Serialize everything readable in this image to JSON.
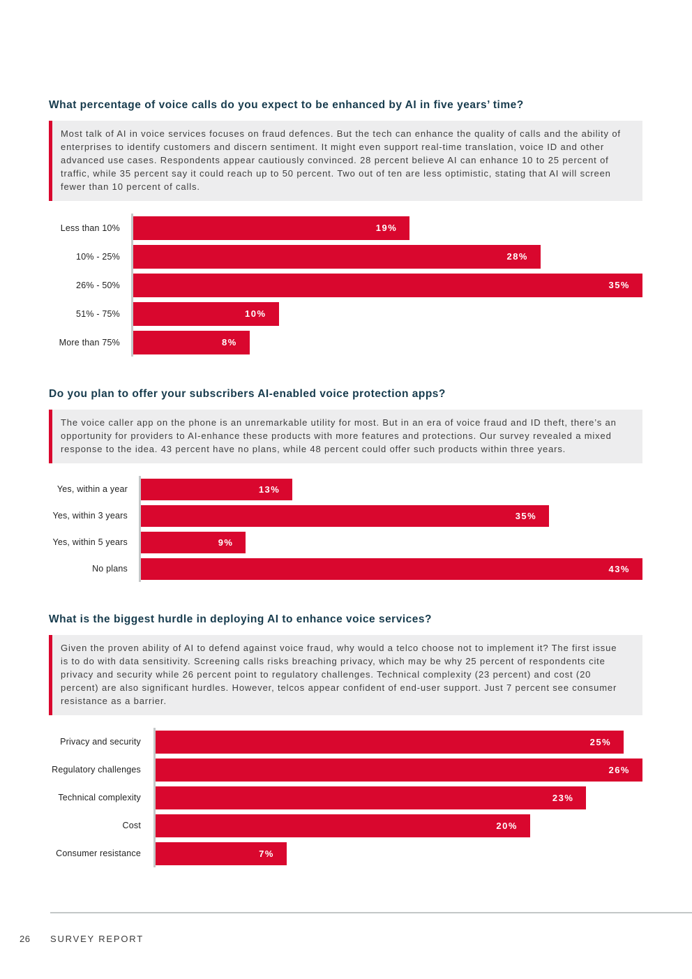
{
  "colors": {
    "bar_red": "#D9072E",
    "heading_navy": "#173B4D",
    "callout_background": "#EDEDEE",
    "callout_border": "#D9072E",
    "axis_gray": "#C5C8C9",
    "footer_rule_gray": "#C3C7C7",
    "body_text": "#3D3D3D"
  },
  "sections": [
    {
      "heading": "What percentage of voice calls do you expect to be enhanced by AI in five years’ time?",
      "body": "Most talk of AI in voice services focuses on fraud defences. But the tech can enhance the quality of calls and the ability of enterprises to identify customers and discern sentiment. It might even support real-time translation, voice ID and other advanced use cases. Respondents appear cautiously convinced. 28 percent believe AI can enhance 10 to 25 percent of traffic, while 35 percent say it could reach up to 50 percent. Two out of ten are less optimistic, stating that AI will screen fewer than 10 percent of calls."
    },
    {
      "heading": "Do you plan to offer your subscribers AI-enabled voice protection apps?",
      "body": "The voice caller app on the phone is an unremarkable utility for most. But in an era of voice fraud and ID theft, there’s an opportunity for providers to AI-enhance these products with more features and protections. Our survey revealed a mixed response to the idea. 43 percent have no plans, while 48 percent could offer such products within three years."
    },
    {
      "heading": "What is the biggest hurdle in deploying AI to enhance voice services?",
      "body": "Given the proven ability of AI to defend against voice fraud, why would a telco choose not to implement it? The first issue is to do with data sensitivity. Screening calls risks breaching privacy, which may be why 25 percent of respondents cite privacy and security while 26 percent point to regulatory challenges. Technical complexity (23 percent) and cost (20 percent) are also significant hurdles. However, telcos appear confident of end-user support. Just 7 percent see consumer resistance as a barrier."
    }
  ],
  "chart_data": [
    {
      "type": "bar",
      "orientation": "horizontal",
      "title": "What percentage of voice calls do you expect to be enhanced by AI in five years’ time?",
      "categories": [
        "Less than 10%",
        "10% - 25%",
        "26% - 50%",
        "51% - 75%",
        "More than 75%"
      ],
      "values": [
        19,
        28,
        35,
        10,
        8
      ],
      "value_labels": [
        "19%",
        "28%",
        "35%",
        "10%",
        "8%"
      ],
      "xlim": [
        0,
        35
      ],
      "grid": false,
      "legend": false,
      "bar_color": "#D9072E"
    },
    {
      "type": "bar",
      "orientation": "horizontal",
      "title": "Do you plan to offer your subscribers AI-enabled voice protection apps?",
      "categories": [
        "Yes, within a year",
        "Yes, within 3 years",
        "Yes, within 5 years",
        "No plans"
      ],
      "values": [
        13,
        35,
        9,
        43
      ],
      "value_labels": [
        "13%",
        "35%",
        "9%",
        "43%"
      ],
      "xlim": [
        0,
        43
      ],
      "grid": false,
      "legend": false,
      "bar_color": "#D9072E"
    },
    {
      "type": "bar",
      "orientation": "horizontal",
      "title": "What is the biggest hurdle in deploying AI to enhance voice services?",
      "categories": [
        "Privacy and security",
        "Regulatory challenges",
        "Technical complexity",
        "Cost",
        "Consumer resistance"
      ],
      "values": [
        25,
        26,
        23,
        20,
        7
      ],
      "value_labels": [
        "25%",
        "26%",
        "23%",
        "20%",
        "7%"
      ],
      "xlim": [
        0,
        26
      ],
      "grid": false,
      "legend": false,
      "bar_color": "#D9072E"
    }
  ],
  "footer": {
    "page_number": "26",
    "report_title": "SURVEY REPORT"
  }
}
